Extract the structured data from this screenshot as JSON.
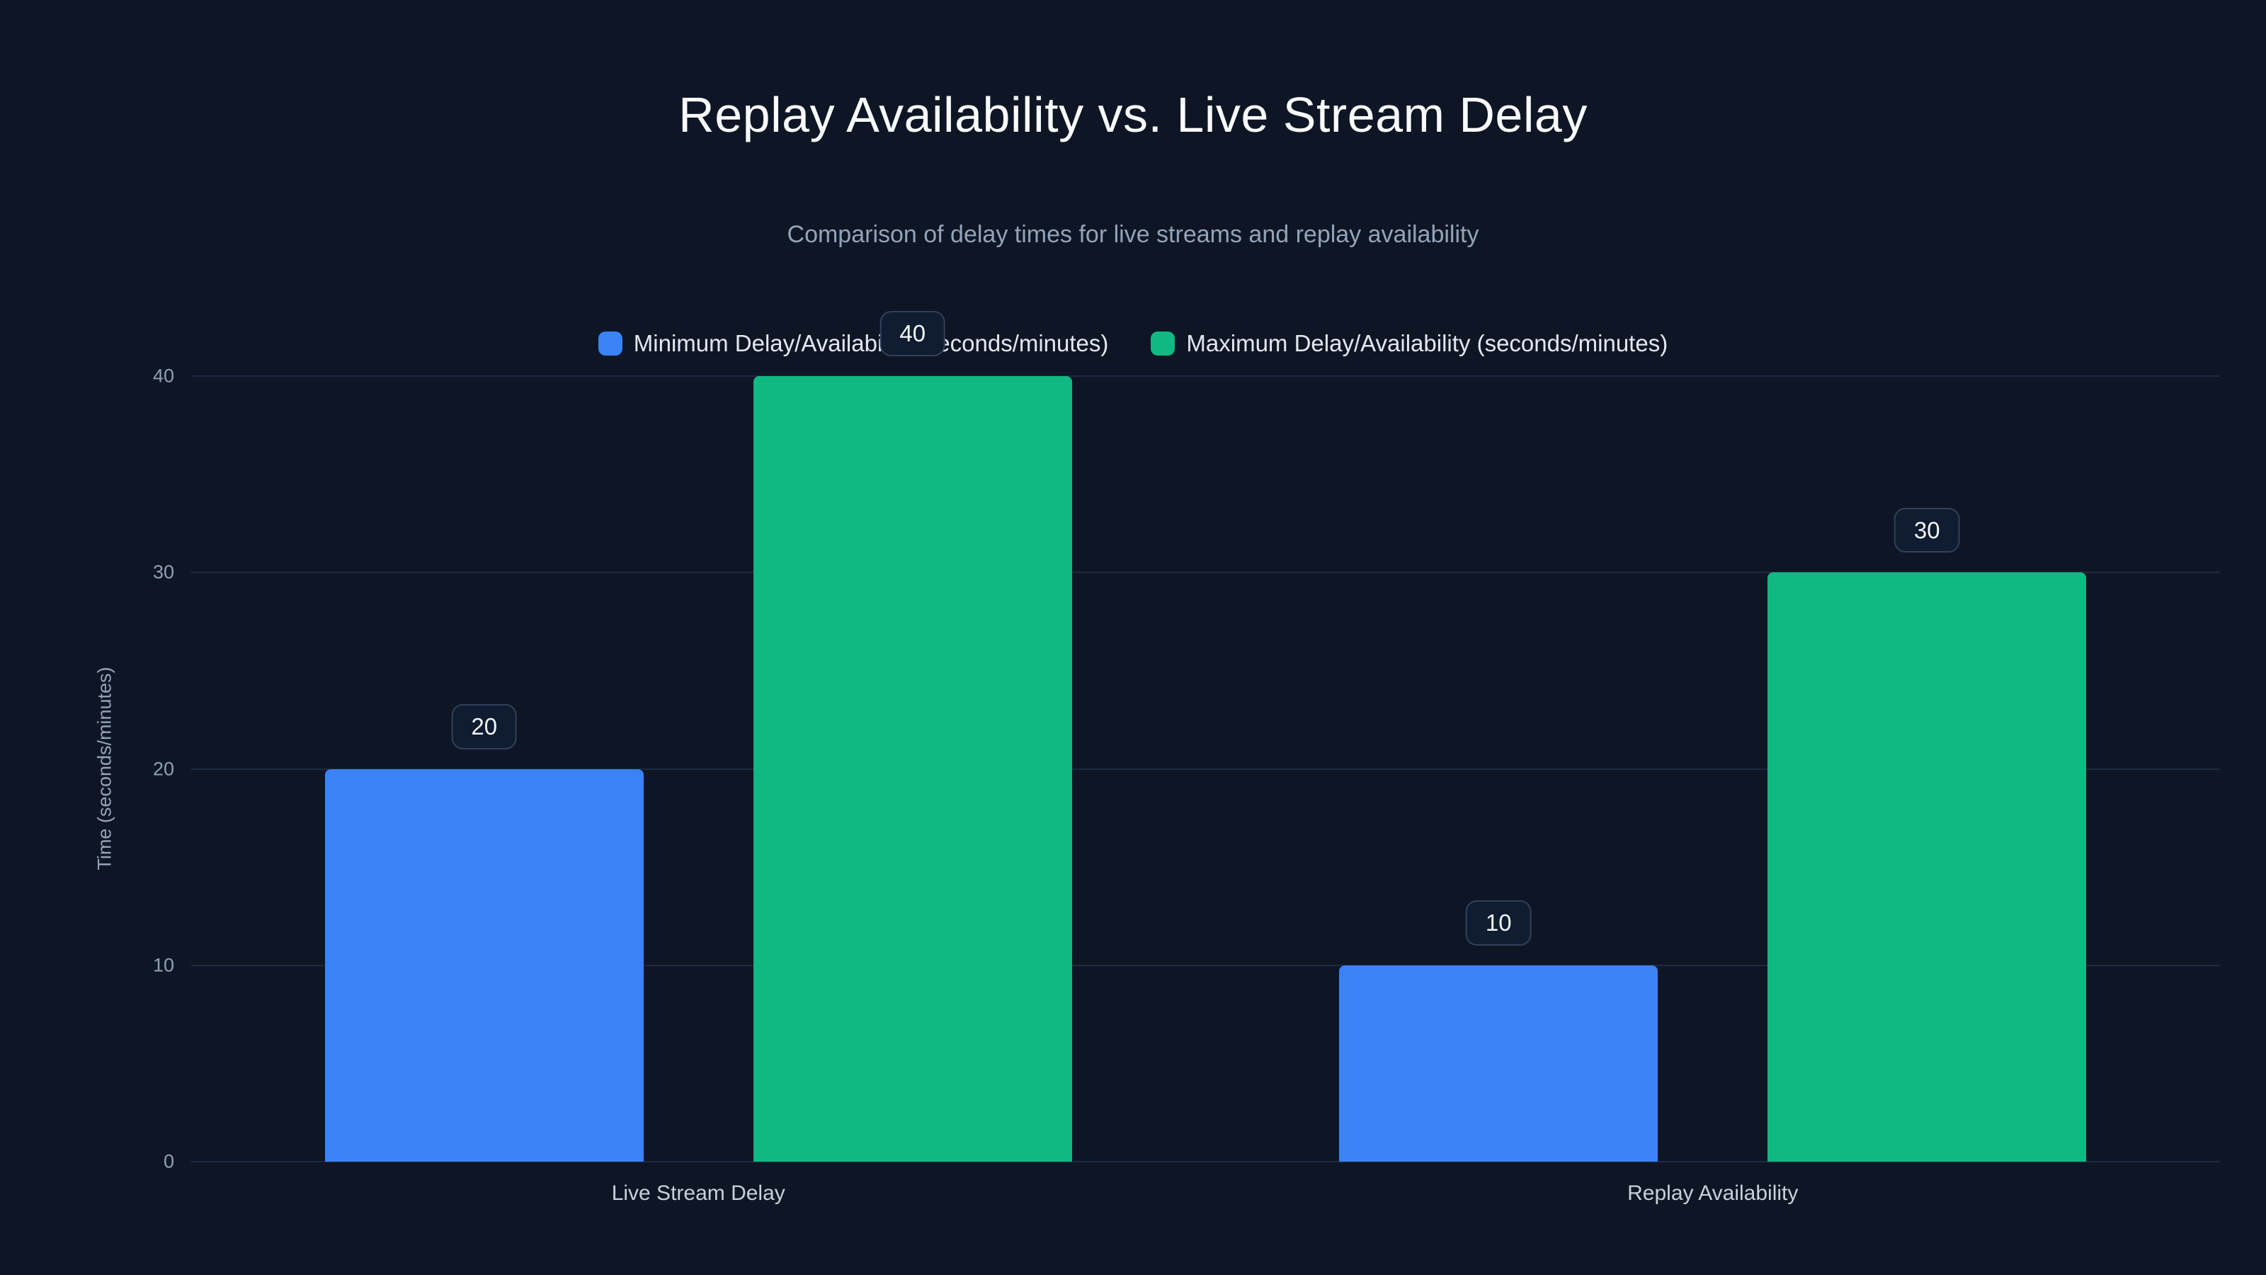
{
  "chart_data": {
    "type": "bar",
    "title": "Replay Availability vs. Live Stream Delay",
    "subtitle": "Comparison of delay times for live streams and replay availability",
    "categories": [
      "Live Stream Delay",
      "Replay Availability"
    ],
    "series": [
      {
        "name": "Minimum Delay/Availability (seconds/minutes)",
        "color": "#3b82f6",
        "values": [
          20,
          10
        ]
      },
      {
        "name": "Maximum Delay/Availability (seconds/minutes)",
        "color": "#10b981",
        "values": [
          40,
          30
        ]
      }
    ],
    "xlabel": "",
    "ylabel": "Time (seconds/minutes)",
    "ylim": [
      0,
      40
    ],
    "yticks": [
      0,
      10,
      20,
      30,
      40
    ],
    "grid": true,
    "legend_position": "top",
    "value_labels": true
  },
  "colors": {
    "background": "#0e1626",
    "grid": "#1c2a42",
    "pill_background": "#101c31",
    "pill_border": "#324058",
    "text_primary": "#f8fafc",
    "text_muted": "#94a3b8"
  }
}
